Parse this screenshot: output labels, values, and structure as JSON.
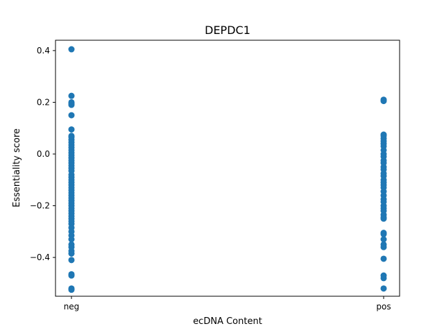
{
  "chart_data": {
    "type": "scatter",
    "title": "DEPDC1",
    "xlabel": "ecDNA Content",
    "ylabel": "Essentiality score",
    "categories": [
      "neg",
      "pos"
    ],
    "ylim": [
      -0.55,
      0.44
    ],
    "yticks": [
      0.4,
      0.2,
      0.0,
      -0.2,
      -0.4
    ],
    "ytick_labels": [
      "0.4",
      "0.2",
      "0.0",
      "−0.2",
      "−0.4"
    ],
    "grid": false,
    "legend": "none",
    "marker_color": "#1f77b4",
    "series": [
      {
        "category": "neg",
        "values": [
          0.405,
          0.225,
          0.2,
          0.195,
          0.19,
          0.15,
          0.095,
          0.07,
          0.065,
          0.055,
          0.045,
          0.035,
          0.025,
          0.015,
          0.005,
          -0.005,
          -0.015,
          -0.025,
          -0.035,
          -0.045,
          -0.055,
          -0.065,
          -0.08,
          -0.09,
          -0.1,
          -0.11,
          -0.12,
          -0.13,
          -0.14,
          -0.15,
          -0.16,
          -0.17,
          -0.18,
          -0.19,
          -0.2,
          -0.21,
          -0.22,
          -0.23,
          -0.24,
          -0.25,
          -0.26,
          -0.27,
          -0.285,
          -0.3,
          -0.315,
          -0.33,
          -0.35,
          -0.36,
          -0.375,
          -0.385,
          -0.41,
          -0.465,
          -0.47,
          -0.52,
          -0.525
        ]
      },
      {
        "category": "pos",
        "values": [
          0.21,
          0.205,
          0.075,
          0.07,
          0.06,
          0.05,
          0.04,
          0.03,
          0.015,
          0.0,
          -0.01,
          -0.025,
          -0.035,
          -0.05,
          -0.06,
          -0.075,
          -0.085,
          -0.1,
          -0.11,
          -0.12,
          -0.13,
          -0.145,
          -0.16,
          -0.175,
          -0.185,
          -0.2,
          -0.21,
          -0.22,
          -0.235,
          -0.245,
          -0.25,
          -0.305,
          -0.31,
          -0.33,
          -0.35,
          -0.36,
          -0.405,
          -0.47,
          -0.48,
          -0.52
        ]
      }
    ]
  }
}
